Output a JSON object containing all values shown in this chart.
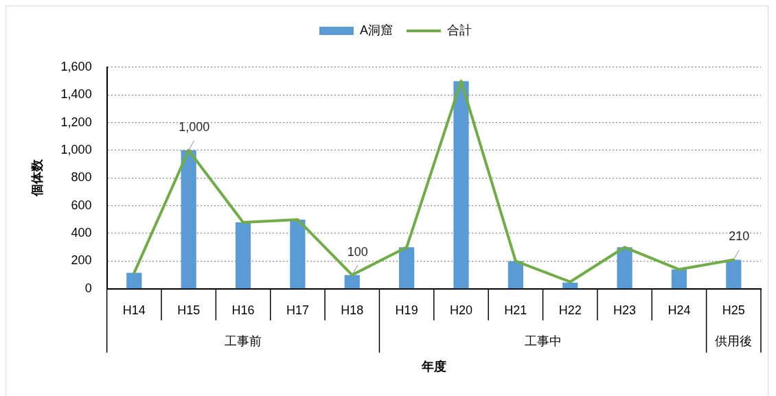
{
  "chart_data": {
    "type": "bar",
    "categories": [
      "H14",
      "H15",
      "H16",
      "H17",
      "H18",
      "H19",
      "H20",
      "H21",
      "H22",
      "H23",
      "H24",
      "H25"
    ],
    "series": [
      {
        "name": "A洞窟",
        "color": "#5b9bd5",
        "values": [
          115,
          1000,
          480,
          500,
          100,
          300,
          1500,
          200,
          45,
          300,
          140,
          210
        ]
      },
      {
        "name": "合計",
        "type": "line",
        "color": "#70ad47",
        "values": [
          115,
          1000,
          480,
          500,
          100,
          300,
          1500,
          200,
          50,
          300,
          140,
          210
        ],
        "value_labels": [
          null,
          "1,000",
          null,
          null,
          "100",
          null,
          null,
          null,
          null,
          null,
          null,
          "210"
        ]
      }
    ],
    "xlabel": "年度",
    "ylabel": "個体数",
    "ylim": [
      0,
      1600
    ],
    "yticks": [
      0,
      200,
      400,
      600,
      800,
      {
        "value": 1000,
        "label": "1,000"
      },
      {
        "value": 1200,
        "label": "1,200"
      },
      {
        "value": 1400,
        "label": "1,400"
      },
      {
        "value": 1600,
        "label": "1,600"
      }
    ],
    "grid": "y",
    "legend": "top",
    "marker": "none",
    "line_style": "solid",
    "annotations": [
      "工事前",
      "工事中",
      "供用後"
    ]
  }
}
